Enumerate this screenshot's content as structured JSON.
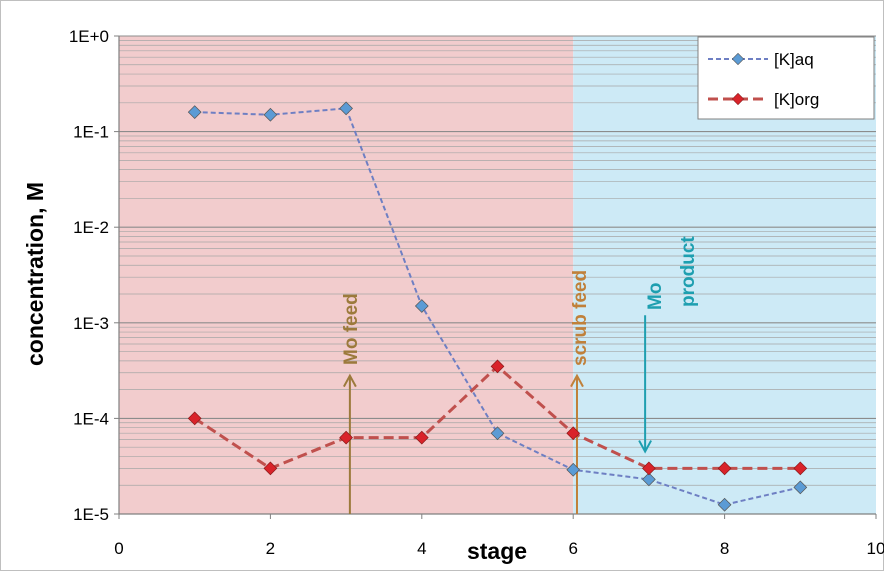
{
  "chart_data": {
    "type": "line",
    "xlabel": "stage",
    "ylabel": "concentration, M",
    "x_ticks": [
      "0",
      "2",
      "4",
      "6",
      "8",
      "10"
    ],
    "y_ticks": [
      "1E-5",
      "1E-4",
      "1E-3",
      "1E-2",
      "1E-1",
      "1E+0"
    ],
    "xlim": [
      0,
      10
    ],
    "ylim": [
      1e-05,
      1
    ],
    "y_scale": "log",
    "grid": "horizontal major and minor",
    "legend_position": "top-right",
    "regions": [
      {
        "x_from": 0,
        "x_to": 6,
        "color": "#f2cccd"
      },
      {
        "x_from": 6,
        "x_to": 10,
        "color": "#cdeaf6"
      }
    ],
    "series": [
      {
        "name": "[K]aq",
        "color": "#6e7fc3",
        "marker_color": "#5b9bd5",
        "line_style": "dashed",
        "x": [
          1,
          2,
          3,
          4,
          5,
          6,
          7,
          8,
          9
        ],
        "y": [
          0.16,
          0.15,
          0.175,
          0.0015,
          7e-05,
          2.9e-05,
          2.3e-05,
          1.25e-05,
          1.9e-05
        ]
      },
      {
        "name": "[K]org",
        "color": "#c0504d",
        "marker_color": "#d9232a",
        "line_style": "dashed",
        "x": [
          1,
          2,
          3,
          4,
          5,
          6,
          7,
          8,
          9
        ],
        "y": [
          0.0001,
          3e-05,
          6.3e-05,
          6.3e-05,
          0.00035,
          7e-05,
          3e-05,
          3e-05,
          3e-05
        ]
      }
    ],
    "annotations": [
      {
        "text": "Mo feed",
        "x": 3.05,
        "color": "#9c7a3c",
        "arrow_from_y": 1e-05,
        "arrow_to_y": 0.00028,
        "direction": "up"
      },
      {
        "text": "scrub feed",
        "x": 6.05,
        "color": "#c0803a",
        "arrow_from_y": 1e-05,
        "arrow_to_y": 0.00028,
        "direction": "up"
      },
      {
        "text": "Mo",
        "text2": "product",
        "x": 6.95,
        "color": "#1e9fb0",
        "arrow_from_y": 0.0012,
        "arrow_to_y": 4.5e-05,
        "direction": "down"
      }
    ]
  }
}
